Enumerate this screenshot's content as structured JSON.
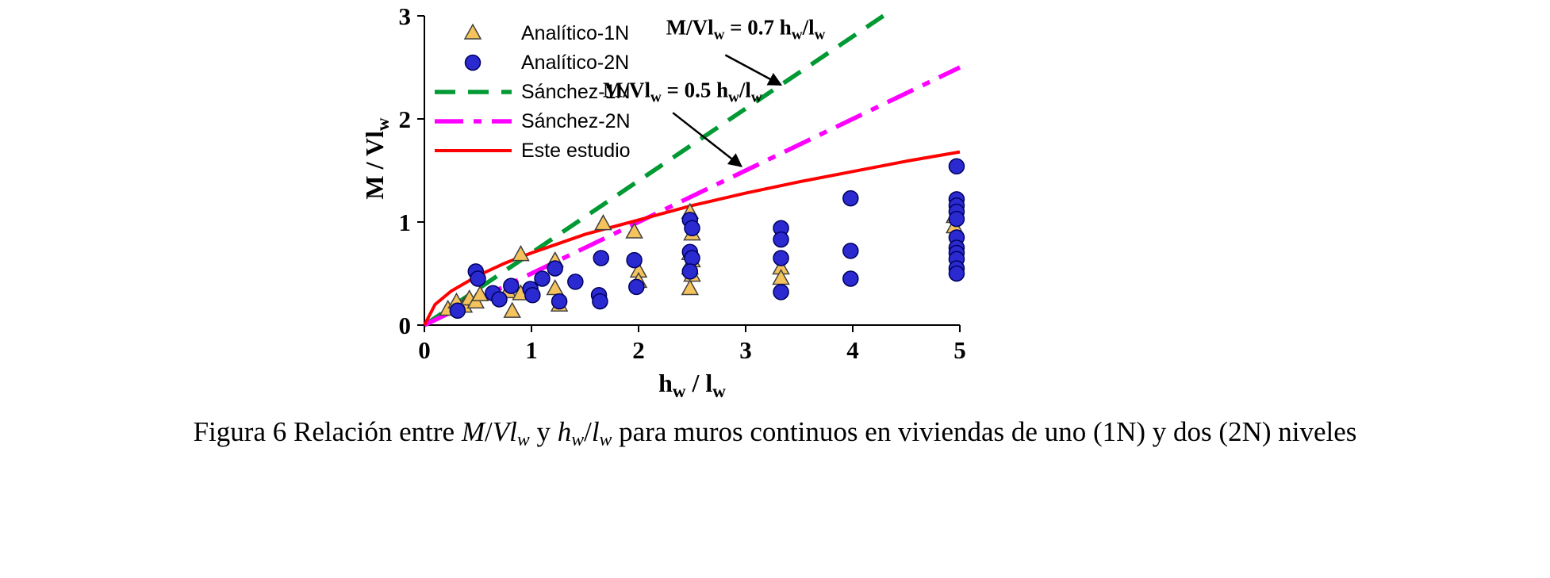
{
  "caption": {
    "segments": [
      {
        "text": "Figura 6 Relación entre ",
        "italic": false,
        "sub": false
      },
      {
        "text": "M",
        "italic": true,
        "sub": false
      },
      {
        "text": "/",
        "italic": false,
        "sub": false
      },
      {
        "text": "Vl",
        "italic": true,
        "sub": false
      },
      {
        "text": "w",
        "italic": true,
        "sub": true
      },
      {
        "text": " y ",
        "italic": false,
        "sub": false
      },
      {
        "text": "h",
        "italic": true,
        "sub": false
      },
      {
        "text": "w",
        "italic": true,
        "sub": true
      },
      {
        "text": "/",
        "italic": false,
        "sub": false
      },
      {
        "text": "l",
        "italic": true,
        "sub": false
      },
      {
        "text": "w",
        "italic": true,
        "sub": true
      },
      {
        "text": " para muros continuos en viviendas de uno (1N) y dos (2N) niveles",
        "italic": false,
        "sub": false
      }
    ]
  },
  "chart_data": {
    "type": "scatter",
    "title": "",
    "xlabel": "h_{w} / l_{w}",
    "ylabel": "M / Vl_{w}",
    "xlim": [
      0,
      5
    ],
    "ylim": [
      0,
      3
    ],
    "xticks": [
      0,
      1,
      2,
      3,
      4,
      5
    ],
    "yticks": [
      0,
      1,
      2,
      3
    ],
    "grid": false,
    "legend_position": "top-left-inside",
    "axis_color": "#000000",
    "series": [
      {
        "name": "Analítico-1N",
        "type": "scatter",
        "marker": "triangle",
        "fill": "#F5C35C",
        "stroke": "#404040",
        "points": [
          [
            0.22,
            0.15
          ],
          [
            0.3,
            0.22
          ],
          [
            0.37,
            0.18
          ],
          [
            0.42,
            0.25
          ],
          [
            0.48,
            0.22
          ],
          [
            0.52,
            0.29
          ],
          [
            0.78,
            0.32
          ],
          [
            0.82,
            0.13
          ],
          [
            0.9,
            0.68
          ],
          [
            0.9,
            0.3
          ],
          [
            1.22,
            0.62
          ],
          [
            1.22,
            0.35
          ],
          [
            1.26,
            0.19
          ],
          [
            1.67,
            0.98
          ],
          [
            1.96,
            0.9
          ],
          [
            2.0,
            0.52
          ],
          [
            2.0,
            0.42
          ],
          [
            2.48,
            1.09
          ],
          [
            2.5,
            0.88
          ],
          [
            2.48,
            0.69
          ],
          [
            2.5,
            0.62
          ],
          [
            2.48,
            0.55
          ],
          [
            2.5,
            0.48
          ],
          [
            2.48,
            0.35
          ],
          [
            3.33,
            0.55
          ],
          [
            3.33,
            0.45
          ],
          [
            4.95,
            1.05
          ],
          [
            4.95,
            0.95
          ]
        ]
      },
      {
        "name": "Analítico-2N",
        "type": "scatter",
        "marker": "circle",
        "fill": "#2A2AD0",
        "stroke": "#000060",
        "points": [
          [
            0.31,
            0.14
          ],
          [
            0.48,
            0.52
          ],
          [
            0.5,
            0.45
          ],
          [
            0.64,
            0.31
          ],
          [
            0.7,
            0.25
          ],
          [
            0.81,
            0.38
          ],
          [
            0.99,
            0.35
          ],
          [
            1.01,
            0.29
          ],
          [
            1.1,
            0.45
          ],
          [
            1.22,
            0.55
          ],
          [
            1.26,
            0.23
          ],
          [
            1.41,
            0.42
          ],
          [
            1.63,
            0.29
          ],
          [
            1.64,
            0.23
          ],
          [
            1.65,
            0.65
          ],
          [
            1.96,
            0.63
          ],
          [
            1.98,
            0.37
          ],
          [
            2.48,
            1.02
          ],
          [
            2.5,
            0.94
          ],
          [
            2.48,
            0.71
          ],
          [
            2.5,
            0.65
          ],
          [
            2.48,
            0.52
          ],
          [
            3.33,
            0.94
          ],
          [
            3.33,
            0.83
          ],
          [
            3.33,
            0.65
          ],
          [
            3.33,
            0.32
          ],
          [
            3.98,
            1.23
          ],
          [
            3.98,
            0.72
          ],
          [
            3.98,
            0.45
          ],
          [
            4.97,
            1.54
          ],
          [
            4.97,
            1.22
          ],
          [
            4.97,
            1.16
          ],
          [
            4.97,
            1.1
          ],
          [
            4.97,
            1.03
          ],
          [
            4.97,
            0.85
          ],
          [
            4.97,
            0.75
          ],
          [
            4.97,
            0.7
          ],
          [
            4.97,
            0.64
          ],
          [
            4.97,
            0.55
          ],
          [
            4.97,
            0.5
          ]
        ]
      },
      {
        "name": "Sánchez-1N",
        "type": "line",
        "style": "dashed",
        "color": "#009933",
        "equation": "y = 0.7x",
        "points": [
          [
            0,
            0
          ],
          [
            4.286,
            3
          ]
        ]
      },
      {
        "name": "Sánchez-2N",
        "type": "line",
        "style": "dashdot",
        "color": "#FF00FF",
        "equation": "y = 0.5x",
        "points": [
          [
            0,
            0
          ],
          [
            5,
            2.5
          ]
        ]
      },
      {
        "name": "Este estudio",
        "type": "line",
        "style": "solid",
        "color": "#FF0000",
        "points": [
          [
            0,
            0
          ],
          [
            0.1,
            0.2
          ],
          [
            0.25,
            0.33
          ],
          [
            0.5,
            0.48
          ],
          [
            0.75,
            0.6
          ],
          [
            1,
            0.7
          ],
          [
            1.25,
            0.79
          ],
          [
            1.5,
            0.88
          ],
          [
            2,
            1.02
          ],
          [
            2.5,
            1.16
          ],
          [
            3,
            1.28
          ],
          [
            3.5,
            1.39
          ],
          [
            4,
            1.49
          ],
          [
            4.5,
            1.59
          ],
          [
            5,
            1.68
          ]
        ]
      }
    ],
    "annotations": [
      {
        "text": "M/Vl_{w} = 0.7 h_{w}/l_{w}",
        "x": 3.0,
        "y": 2.82,
        "arrow_from": [
          2.81,
          2.62
        ],
        "arrow_to": [
          3.33,
          2.33
        ]
      },
      {
        "text": "M/Vl_{w} = 0.5 h_{w}/l_{w}",
        "x": 2.41,
        "y": 2.21,
        "arrow_from": [
          2.32,
          2.06
        ],
        "arrow_to": [
          2.96,
          1.54
        ]
      }
    ]
  }
}
